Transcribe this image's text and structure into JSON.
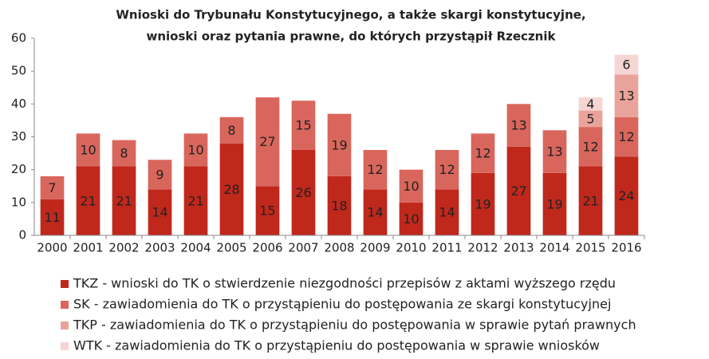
{
  "chart_data": {
    "type": "bar",
    "stacked": true,
    "title": [
      "Wnioski do Trybunału Konstytucyjnego, a także skargi konstytucyjne,",
      "wnioski oraz pytania prawne, do których przystąpił  Rzecznik"
    ],
    "categories": [
      "2000",
      "2001",
      "2002",
      "2003",
      "2004",
      "2005",
      "2006",
      "2007",
      "2008",
      "2009",
      "2010",
      "2011",
      "2012",
      "2013",
      "2014",
      "2015",
      "2016"
    ],
    "series": [
      {
        "name": "TKZ - wnioski do TK o stwierdzenie niezgodności przepisów z aktami wyższego rzędu",
        "color": "#c0281c",
        "values": [
          11,
          21,
          21,
          14,
          21,
          28,
          15,
          26,
          18,
          14,
          10,
          14,
          19,
          27,
          19,
          21,
          24
        ]
      },
      {
        "name": "SK  - zawiadomienia do TK o przystąpieniu do postępowania ze skargi konstytucyjnej",
        "color": "#d9665c",
        "values": [
          7,
          10,
          8,
          9,
          10,
          8,
          27,
          15,
          19,
          12,
          10,
          12,
          12,
          13,
          13,
          12,
          12
        ]
      },
      {
        "name": "TKP - zawiadomienia do TK o przystąpieniu do postępowania w sprawie pytań prawnych",
        "color": "#eaa39b",
        "values": [
          null,
          null,
          null,
          null,
          null,
          null,
          null,
          null,
          null,
          null,
          null,
          null,
          null,
          null,
          null,
          5,
          13
        ]
      },
      {
        "name": "WTK - zawiadomienia do TK o przystąpieniu do postępowania w sprawie wniosków",
        "color": "#f6d6d2",
        "values": [
          null,
          null,
          null,
          null,
          null,
          null,
          null,
          null,
          null,
          null,
          null,
          null,
          null,
          null,
          null,
          4,
          6
        ]
      }
    ],
    "ylim": [
      0,
      60
    ],
    "yticks": [
      0,
      10,
      20,
      30,
      40,
      50,
      60
    ],
    "grid": false,
    "legend": "bottom"
  }
}
